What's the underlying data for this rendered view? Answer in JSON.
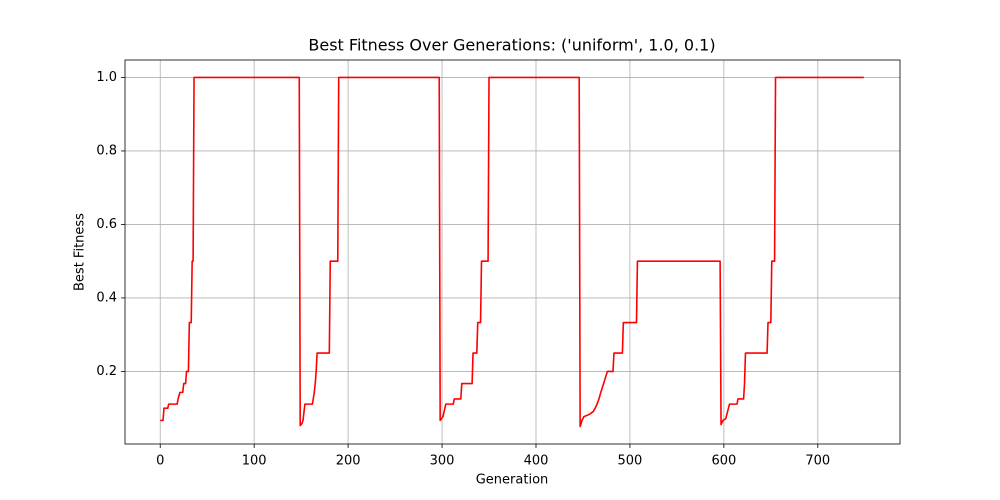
{
  "chart_data": {
    "type": "line",
    "title": "Best Fitness Over Generations: ('uniform', 1.0, 0.1)",
    "x_label": "Generation",
    "y_label": "Best Fitness",
    "xlim": [
      -37.5,
      787.5
    ],
    "ylim": [
      0.0025,
      1.0475
    ],
    "xticks": [
      0,
      100,
      200,
      300,
      400,
      500,
      600,
      700
    ],
    "yticks": [
      0.2,
      0.4,
      0.6,
      0.8,
      {
        "value": 1.0,
        "label": "1.0"
      }
    ],
    "grid": true,
    "series": [
      {
        "color": "#ff0000",
        "x": [
          0,
          3,
          4,
          8,
          9,
          18,
          19,
          21,
          24,
          25,
          27,
          28,
          30,
          31,
          33,
          34,
          35,
          36,
          148,
          149,
          151,
          152,
          154,
          162,
          164,
          165,
          166,
          167,
          180,
          181,
          189,
          190,
          297,
          298,
          301,
          304,
          312,
          313,
          320,
          321,
          332,
          333,
          337,
          338,
          341,
          342,
          349,
          350,
          446,
          447,
          449,
          451,
          457,
          461,
          463,
          465,
          467,
          469,
          472,
          476,
          482,
          483,
          492,
          493,
          507,
          508,
          596,
          597,
          599,
          602,
          606,
          614,
          615,
          621,
          622,
          623,
          646,
          647,
          650,
          651,
          654,
          655,
          749
        ],
        "values": [
          0.0667,
          0.0667,
          0.1,
          0.1,
          0.111,
          0.111,
          0.125,
          0.143,
          0.143,
          0.167,
          0.167,
          0.2,
          0.2,
          0.333,
          0.333,
          0.5,
          0.5,
          1.0,
          1.0,
          0.0526,
          0.0588,
          0.0667,
          0.111,
          0.111,
          0.143,
          0.167,
          0.2,
          0.25,
          0.25,
          0.5,
          0.5,
          1.0,
          1.0,
          0.0667,
          0.0769,
          0.111,
          0.111,
          0.125,
          0.125,
          0.167,
          0.167,
          0.25,
          0.25,
          0.333,
          0.333,
          0.5,
          0.5,
          1.0,
          1.0,
          0.05,
          0.0667,
          0.0769,
          0.0833,
          0.0909,
          0.1,
          0.111,
          0.125,
          0.143,
          0.167,
          0.2,
          0.2,
          0.25,
          0.25,
          0.333,
          0.333,
          0.5,
          0.5,
          0.0556,
          0.0667,
          0.0714,
          0.111,
          0.111,
          0.125,
          0.125,
          0.167,
          0.25,
          0.25,
          0.333,
          0.333,
          0.5,
          0.5,
          1.0,
          1.0
        ]
      }
    ]
  }
}
